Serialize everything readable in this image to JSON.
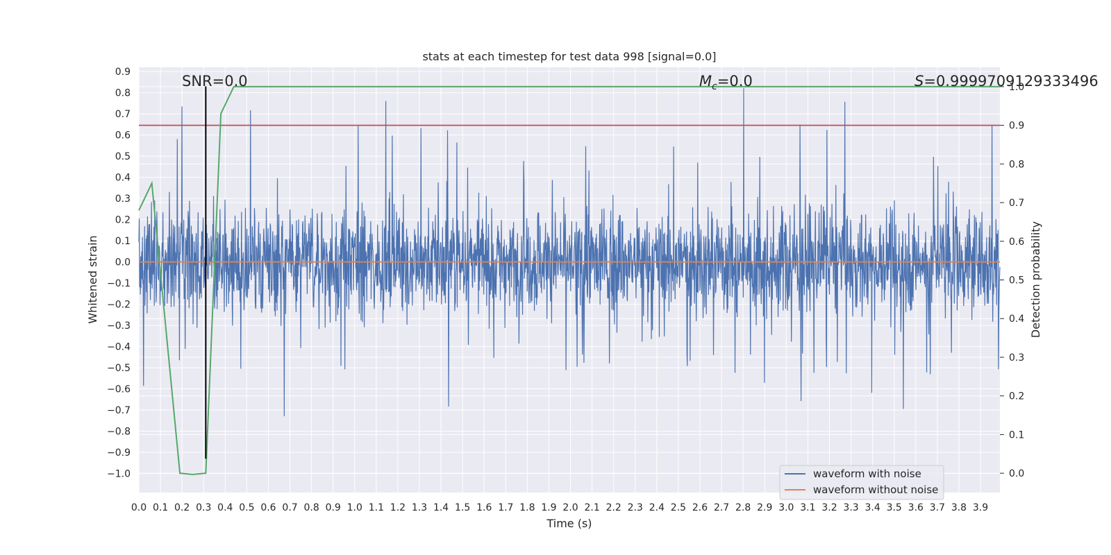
{
  "chart_data": {
    "type": "line",
    "title": "stats at each timestep for test data 998 [signal=0.0]",
    "xlabel": "Time (s)",
    "ylabel": "Whitened strain",
    "y2label": "Detection probability",
    "xlim": [
      0.0,
      3.99
    ],
    "ylim": [
      -1.09,
      0.92
    ],
    "y2lim": [
      -0.05,
      1.05
    ],
    "x_ticks": [
      "0.0",
      "0.1",
      "0.2",
      "0.3",
      "0.4",
      "0.5",
      "0.6",
      "0.7",
      "0.8",
      "0.9",
      "1.0",
      "1.1",
      "1.2",
      "1.3",
      "1.4",
      "1.5",
      "1.6",
      "1.7",
      "1.8",
      "1.9",
      "2.0",
      "2.1",
      "2.2",
      "2.3",
      "2.4",
      "2.5",
      "2.6",
      "2.7",
      "2.8",
      "2.9",
      "3.0",
      "3.1",
      "3.2",
      "3.3",
      "3.4",
      "3.5",
      "3.6",
      "3.7",
      "3.8",
      "3.9"
    ],
    "y_ticks": [
      "0.9",
      "0.8",
      "0.7",
      "0.6",
      "0.5",
      "0.4",
      "0.3",
      "0.2",
      "0.1",
      "0.0",
      "−0.1",
      "−0.2",
      "−0.3",
      "−0.4",
      "−0.5",
      "−0.6",
      "−0.7",
      "−0.8",
      "−0.9",
      "−1.0"
    ],
    "y2_ticks": [
      "1.0",
      "0.9",
      "0.8",
      "0.7",
      "0.6",
      "0.5",
      "0.4",
      "0.3",
      "0.2",
      "0.1",
      "0.0"
    ],
    "series": [
      {
        "name": "waveform with noise",
        "color": "#4c72b0",
        "axis": "left",
        "description": "noise samples, approx. within -0.3..0.3 with spikes up to 0.83 and down to -1.0"
      },
      {
        "name": "waveform without noise",
        "color": "#dd8452",
        "axis": "left",
        "x": [
          0.0,
          3.99
        ],
        "y": [
          0.0,
          0.0
        ]
      },
      {
        "name": "detection probability",
        "color": "#55a868",
        "axis": "right",
        "x": [
          0.0,
          0.06,
          0.19,
          0.25,
          0.31,
          0.38,
          0.44,
          3.99
        ],
        "y": [
          0.68,
          0.75,
          0.0,
          -0.003,
          0.0,
          0.93,
          1.0,
          1.0
        ]
      }
    ],
    "threshold": {
      "color": "#c44e52",
      "axis": "right",
      "value": 0.9
    },
    "marker_line": {
      "color": "#000000",
      "x": 0.31,
      "y_top": 0.83,
      "y_bottom": -0.93
    },
    "annotations": {
      "snr": "SNR=0.0",
      "mc_symbol": "M",
      "mc_sub": "c",
      "mc_value": "=0.0",
      "s_symbol": "S",
      "s_value": "=0.9999709129333496"
    },
    "legend": {
      "position": "lower-right",
      "entries": [
        "waveform with noise",
        "waveform without noise"
      ]
    },
    "grid": true
  }
}
